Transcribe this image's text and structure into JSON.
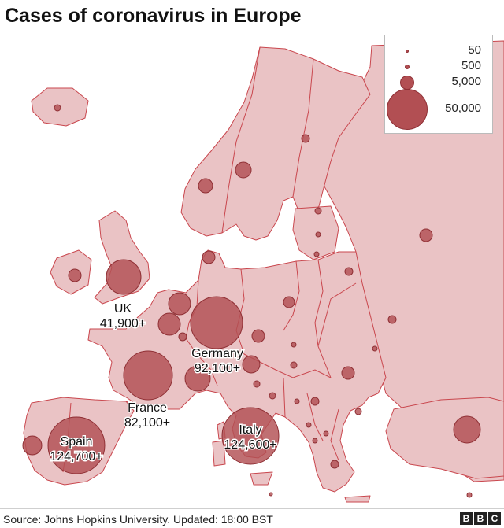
{
  "title": "Cases of coronavirus in Europe",
  "legend": {
    "items": [
      {
        "label": "50",
        "value": 50
      },
      {
        "label": "500",
        "value": 500
      },
      {
        "label": "5,000",
        "value": 5000
      },
      {
        "label": "50,000",
        "value": 50000
      }
    ]
  },
  "labels": {
    "uk": [
      "UK",
      "41,900+"
    ],
    "germany": [
      "Germany",
      "92,100+"
    ],
    "france": [
      "France",
      "82,100+"
    ],
    "spain": [
      "Spain",
      "124,700+"
    ],
    "italy": [
      "Italy",
      "124,600+"
    ]
  },
  "source": "Source: Johns Hopkins University. Updated: 18:00 BST",
  "logo": [
    "B",
    "B",
    "C"
  ],
  "colors": {
    "land": "#eac3c5",
    "border": "#c9474e",
    "sea": "#ffffff",
    "bubble": "#b24f53",
    "bubble_stroke": "#8f2f34"
  }
}
